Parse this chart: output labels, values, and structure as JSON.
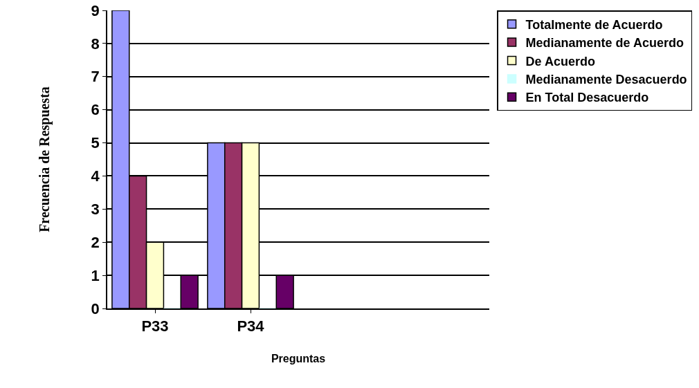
{
  "chart_data": {
    "type": "bar",
    "xlabel": "Preguntas",
    "ylabel": "Frecuencia de Respuesta",
    "categories": [
      "P33",
      "P34",
      null,
      null
    ],
    "series": [
      {
        "name": "Totalmente de Acuerdo",
        "color": "#9999ff",
        "values": [
          9,
          5,
          null,
          null
        ]
      },
      {
        "name": "Medianamente de Acuerdo",
        "color": "#993366",
        "values": [
          4,
          5,
          null,
          null
        ]
      },
      {
        "name": "De Acuerdo",
        "color": "#ffffcc",
        "values": [
          2,
          5,
          null,
          null
        ]
      },
      {
        "name": "Medianamente Desacuerdo",
        "color": "#ccffff",
        "values": [
          0,
          0,
          null,
          null
        ]
      },
      {
        "name": "En Total Desacuerdo",
        "color": "#660066",
        "values": [
          1,
          1,
          null,
          null
        ]
      }
    ],
    "ylim": [
      0,
      9
    ],
    "yticks": [
      0,
      1,
      2,
      3,
      4,
      5,
      6,
      7,
      8,
      9
    ],
    "grid": "y",
    "legend": "right"
  }
}
